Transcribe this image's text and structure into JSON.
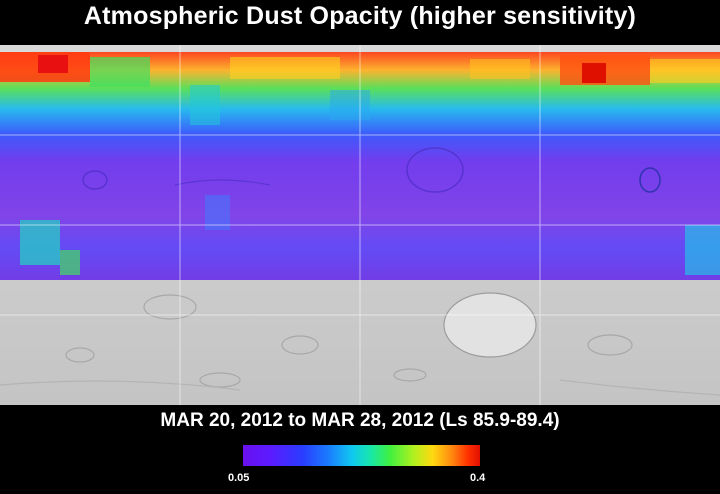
{
  "title": "Atmospheric Dust Opacity (higher sensitivity)",
  "date_range": "MAR 20, 2012 to MAR 28, 2012 (Ls 85.9-89.4)",
  "colorbar": {
    "min_label": "0.05",
    "max_label": "0.4",
    "min_value": 0.05,
    "max_value": 0.4,
    "colors": [
      "#6a10f0",
      "#2a3cff",
      "#10c8f0",
      "#40f040",
      "#ffd810",
      "#ff8a10",
      "#e01000"
    ]
  }
}
